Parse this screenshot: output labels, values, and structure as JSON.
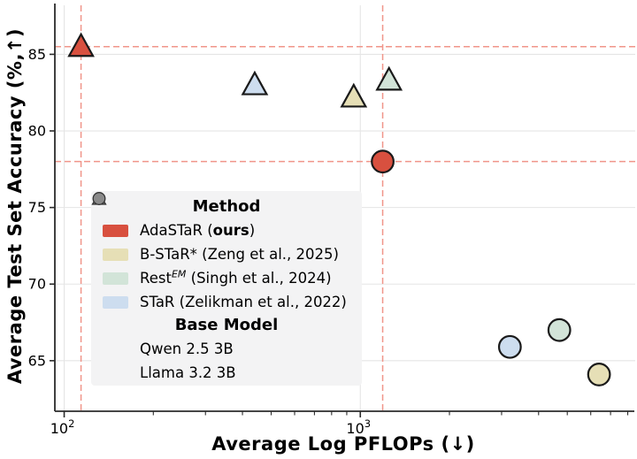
{
  "figure": {
    "x_axis_label": "Average Log PFLOPs (↓)",
    "y_axis_label": "Average Test Set Accuracy (%,↑)"
  },
  "legend": {
    "method_title": "Method",
    "base_model_title": "Base Model",
    "methods": [
      {
        "color": "#d8503f",
        "t1": "AdaSTaR (",
        "b": "ours",
        "sup": "",
        "t2": ")"
      },
      {
        "color": "#e6dfb6",
        "t1": "B-STaR* (Zeng et al., 2025)",
        "b": "",
        "sup": "",
        "t2": ""
      },
      {
        "color": "#d2e4d8",
        "t1": "Rest",
        "b": "",
        "sup": "EM",
        "t2": " (Singh et al., 2024)"
      },
      {
        "color": "#cdddef",
        "t1": "STaR (Zelikman et al., 2022)",
        "b": "",
        "sup": "",
        "t2": ""
      }
    ],
    "base_models": [
      {
        "marker": "triangle",
        "label": "Qwen 2.5 3B"
      },
      {
        "marker": "circle",
        "label": "Llama 3.2 3B"
      }
    ],
    "marker_fill": "#8a8a8a",
    "marker_edge": "#333333"
  },
  "chart_data": {
    "type": "scatter",
    "title": "",
    "xlabel": "Average Log PFLOPs (↓)",
    "ylabel": "Average Test Set Accuracy (%,↑)",
    "x_scale": "log10",
    "xlim": [
      93,
      8250
    ],
    "ylim": [
      61.7,
      88.2
    ],
    "grid": true,
    "legend_position": "center-left",
    "x_ticks": [
      {
        "value": 100,
        "label_base": "10",
        "label_exp": "2"
      },
      {
        "value": 1000,
        "label_base": "10",
        "label_exp": "3"
      }
    ],
    "y_ticks": [
      65,
      70,
      75,
      80,
      85
    ],
    "marker_edge_color": "#1a1a1a",
    "grid_color": "#e5e5e5",
    "spine_color": "#2b2b2b",
    "crosshair_color": "#f0958a",
    "series": [
      {
        "name": "AdaSTaR (ours)",
        "color": "#d8503f",
        "points": [
          {
            "base_model": "Qwen 2.5 3B",
            "marker": "triangle",
            "x": 114,
            "y": 85.5,
            "crosshair": true
          },
          {
            "base_model": "Llama 3.2 3B",
            "marker": "circle",
            "x": 1190,
            "y": 78.0,
            "crosshair": true
          }
        ]
      },
      {
        "name": "B-STaR* (Zeng et al., 2025)",
        "color": "#e6dfb6",
        "points": [
          {
            "base_model": "Qwen 2.5 3B",
            "marker": "triangle",
            "x": 950,
            "y": 82.2,
            "crosshair": false
          },
          {
            "base_model": "Llama 3.2 3B",
            "marker": "circle",
            "x": 6400,
            "y": 64.1,
            "crosshair": false
          }
        ]
      },
      {
        "name": "RestEM (Singh et al., 2024)",
        "color": "#d2e4d8",
        "points": [
          {
            "base_model": "Qwen 2.5 3B",
            "marker": "triangle",
            "x": 1250,
            "y": 83.3,
            "crosshair": false
          },
          {
            "base_model": "Llama 3.2 3B",
            "marker": "circle",
            "x": 4700,
            "y": 67.0,
            "crosshair": false
          }
        ]
      },
      {
        "name": "STaR (Zelikman et al., 2022)",
        "color": "#cdddef",
        "points": [
          {
            "base_model": "Qwen 2.5 3B",
            "marker": "triangle",
            "x": 440,
            "y": 83.0,
            "crosshair": false
          },
          {
            "base_model": "Llama 3.2 3B",
            "marker": "circle",
            "x": 3200,
            "y": 65.9,
            "crosshair": false
          }
        ]
      }
    ]
  }
}
